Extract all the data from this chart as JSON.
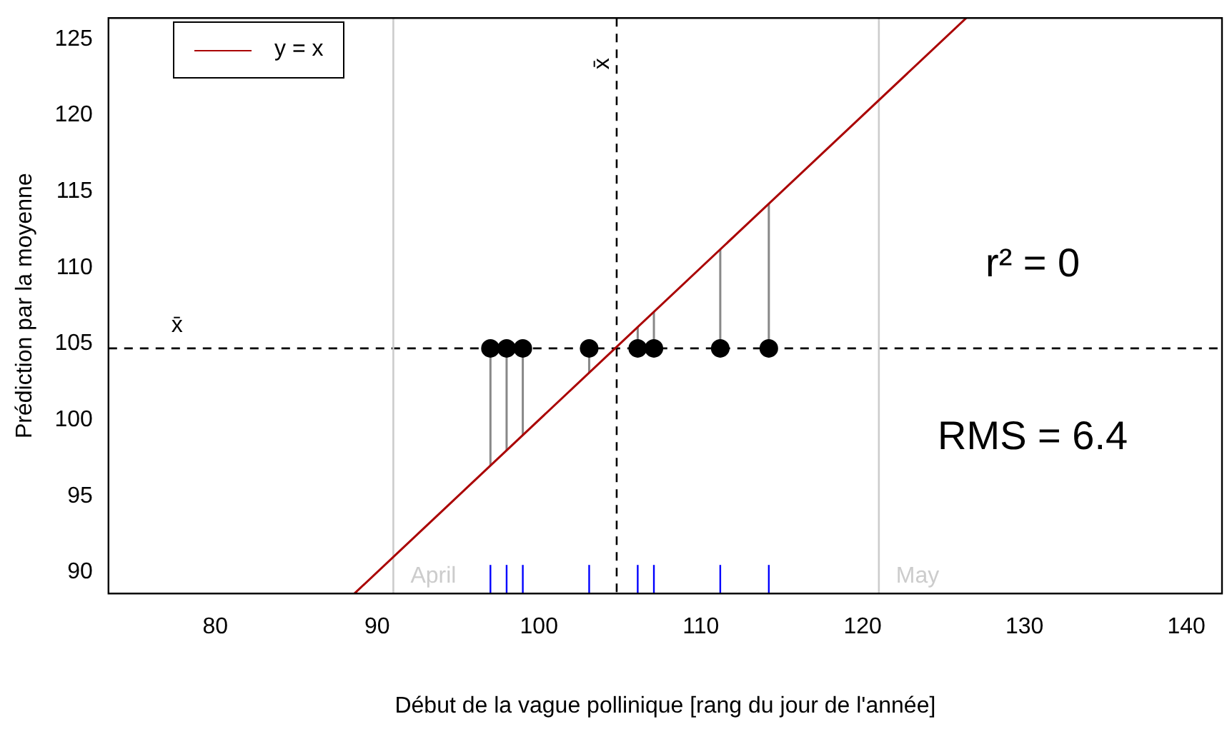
{
  "chart_data": {
    "type": "scatter",
    "xlabel": "Début de la vague pollinique [rang du jour de l'année]",
    "ylabel": "Prédiction par la moyenne",
    "xlim": [
      73.4,
      142.2
    ],
    "ylim": [
      88.6,
      126.4
    ],
    "xticks": [
      80,
      90,
      100,
      110,
      120,
      130,
      140
    ],
    "yticks": [
      90,
      95,
      100,
      105,
      110,
      115,
      120,
      125
    ],
    "grid": false,
    "legend": "top left",
    "marker": "circle",
    "series": [
      {
        "name": "y = x",
        "type": "line",
        "color": "#aa0000",
        "x": [
          88.6,
          126.4
        ],
        "values": [
          88.6,
          126.4
        ],
        "marker": "none",
        "line_style": "solid"
      },
      {
        "color": "#000000",
        "x": [
          97,
          98,
          99,
          103.1,
          106.1,
          107.1,
          111.2,
          114.2
        ],
        "values": [
          104.7,
          104.7,
          104.7,
          104.7,
          104.7,
          104.7,
          104.7,
          104.7
        ],
        "errors": [
          [
            97,
            104.7
          ],
          [
            98,
            104.7
          ],
          [
            99,
            104.7
          ],
          [
            103.1,
            104.7
          ],
          [
            104.7,
            106.1
          ],
          [
            104.7,
            107.1
          ],
          [
            104.7,
            111.2
          ],
          [
            104.7,
            114.2
          ]
        ]
      }
    ],
    "ref_lines": [
      {
        "axis": "x",
        "value": 104.8,
        "label": "x̄",
        "color": "#000000",
        "line_style": "dashed"
      },
      {
        "axis": "y",
        "value": 104.7,
        "label": "x̄",
        "color": "#000000",
        "line_style": "dashed"
      },
      {
        "axis": "x",
        "value": 91,
        "label": "April",
        "color": "#cccccc",
        "line_style": "solid"
      },
      {
        "axis": "x",
        "value": 121,
        "label": "May",
        "color": "#cccccc",
        "line_style": "solid"
      }
    ],
    "annotations": [
      "r² = 0",
      "RMS = 6.4"
    ]
  }
}
